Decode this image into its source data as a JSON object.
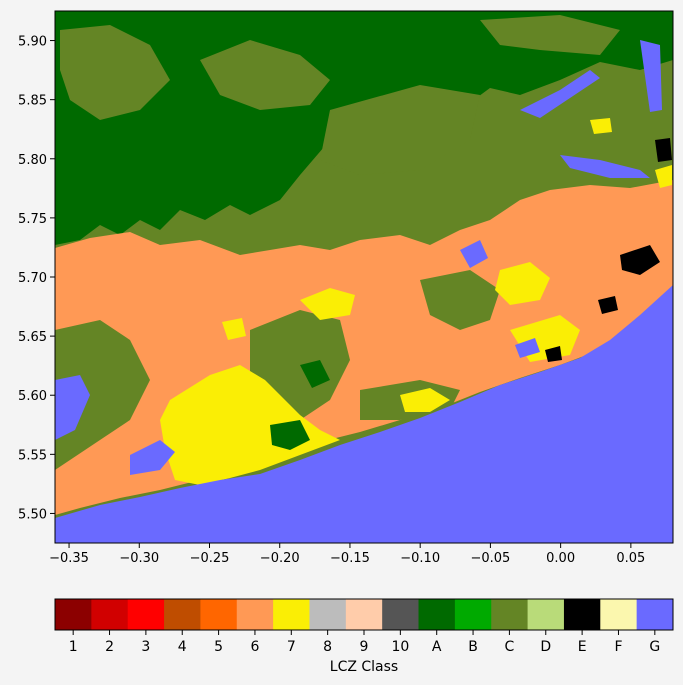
{
  "map": {
    "x_ticks": [
      {
        "value": -0.35,
        "label": "−0.35"
      },
      {
        "value": -0.3,
        "label": "−0.30"
      },
      {
        "value": -0.25,
        "label": "−0.25"
      },
      {
        "value": -0.2,
        "label": "−0.20"
      },
      {
        "value": -0.15,
        "label": "−0.15"
      },
      {
        "value": -0.1,
        "label": "−0.10"
      },
      {
        "value": -0.05,
        "label": "−0.05"
      },
      {
        "value": 0.0,
        "label": "0.00"
      },
      {
        "value": 0.05,
        "label": "0.05"
      }
    ],
    "y_ticks": [
      {
        "value": 5.5,
        "label": "5.50"
      },
      {
        "value": 5.55,
        "label": "5.55"
      },
      {
        "value": 5.6,
        "label": "5.60"
      },
      {
        "value": 5.65,
        "label": "5.65"
      },
      {
        "value": 5.7,
        "label": "5.70"
      },
      {
        "value": 5.75,
        "label": "5.75"
      },
      {
        "value": 5.8,
        "label": "5.80"
      },
      {
        "value": 5.85,
        "label": "5.85"
      },
      {
        "value": 5.9,
        "label": "5.90"
      }
    ],
    "xlim": [
      -0.36,
      0.08
    ],
    "ylim": [
      5.475,
      5.925
    ]
  },
  "colorbar": {
    "label": "LCZ Class",
    "classes": [
      {
        "label": "1",
        "color": "#8c0000"
      },
      {
        "label": "2",
        "color": "#d10000"
      },
      {
        "label": "3",
        "color": "#ff0000"
      },
      {
        "label": "4",
        "color": "#bf4d00"
      },
      {
        "label": "5",
        "color": "#ff6600"
      },
      {
        "label": "6",
        "color": "#ff9955"
      },
      {
        "label": "7",
        "color": "#faee05"
      },
      {
        "label": "8",
        "color": "#bcbcbc"
      },
      {
        "label": "9",
        "color": "#ffccaa"
      },
      {
        "label": "10",
        "color": "#555555"
      },
      {
        "label": "A",
        "color": "#006a00"
      },
      {
        "label": "B",
        "color": "#00aa00"
      },
      {
        "label": "C",
        "color": "#648525"
      },
      {
        "label": "D",
        "color": "#b9db79"
      },
      {
        "label": "E",
        "color": "#000000"
      },
      {
        "label": "F",
        "color": "#fbf7ae"
      },
      {
        "label": "G",
        "color": "#6a6aff"
      }
    ]
  }
}
